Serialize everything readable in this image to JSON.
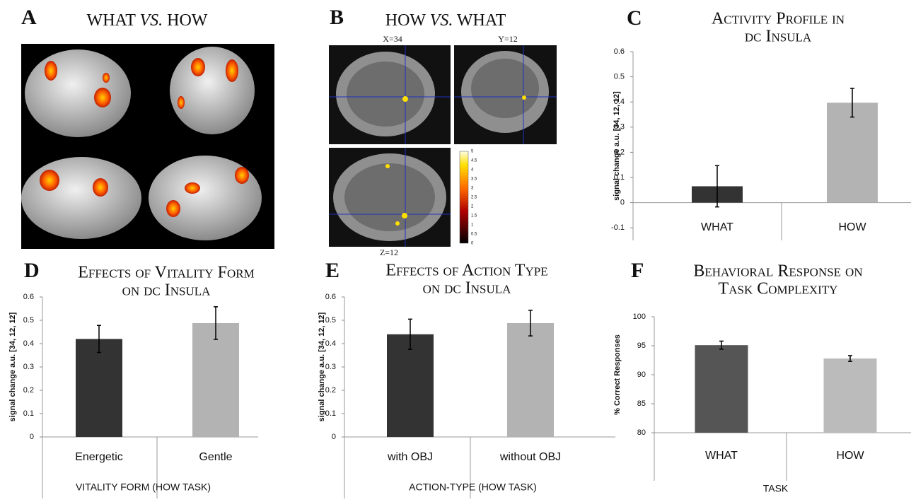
{
  "panel_a": {
    "letter": "A",
    "title": {
      "before": "WHAT",
      "italic": "VS.",
      "after": "HOW"
    }
  },
  "panel_b": {
    "letter": "B",
    "title": {
      "before": "HOW",
      "italic": "VS.",
      "after": "WHAT"
    },
    "slice_labels": [
      "X=34",
      "Y=12",
      "Z=12"
    ],
    "colorbar_ticks": [
      0,
      0.5,
      1,
      1.5,
      2,
      2.5,
      3,
      3.5,
      4,
      4.5,
      5
    ]
  },
  "chart_data": [
    {
      "type": "bar",
      "letter": "C",
      "title": [
        "Activity Profile in",
        "dc Insula"
      ],
      "ylabel": "signal change a.u. [34, 12, 12]",
      "categories": [
        "WHAT",
        "HOW"
      ],
      "values": [
        0.065,
        0.397
      ],
      "errors": [
        0.082,
        0.057
      ],
      "colors": [
        "#333333",
        "#b3b3b3"
      ],
      "ylim": [
        -0.15,
        0.6
      ],
      "yticks": [
        -0.1,
        0,
        0.1,
        0.2,
        0.3,
        0.4,
        0.5,
        0.6
      ]
    },
    {
      "type": "bar",
      "letter": "D",
      "title": [
        "Effects of Vitality Form",
        "on dc Insula"
      ],
      "ylabel": "signal change a.u. [34, 12, 12]",
      "xlabel": "VITALITY FORM (HOW TASK)",
      "categories": [
        "Energetic",
        "Gentle"
      ],
      "values": [
        0.42,
        0.488
      ],
      "errors": [
        0.058,
        0.07
      ],
      "colors": [
        "#333333",
        "#b3b3b3"
      ],
      "ylim": [
        0,
        0.6
      ],
      "yticks": [
        0,
        0.1,
        0.2,
        0.3,
        0.4,
        0.5,
        0.6
      ]
    },
    {
      "type": "bar",
      "letter": "E",
      "title": [
        "Effects of Action Type",
        "on dc Insula"
      ],
      "ylabel": "signal change a.u. [34, 12, 12]",
      "xlabel": "ACTION-TYPE  (HOW TASK)",
      "categories": [
        "with OBJ",
        "without OBJ"
      ],
      "values": [
        0.44,
        0.488
      ],
      "errors": [
        0.065,
        0.055
      ],
      "colors": [
        "#333333",
        "#b3b3b3"
      ],
      "ylim": [
        0,
        0.6
      ],
      "yticks": [
        0,
        0.1,
        0.2,
        0.3,
        0.4,
        0.5,
        0.6
      ]
    },
    {
      "type": "bar",
      "letter": "F",
      "title": [
        "Behavioral Response on",
        "Task Complexity"
      ],
      "ylabel": "% Correct Responses",
      "xlabel": "TASK",
      "categories": [
        "WHAT",
        "HOW"
      ],
      "values": [
        95.1,
        92.8
      ],
      "errors": [
        0.7,
        0.5
      ],
      "colors": [
        "#555555",
        "#bbbbbb"
      ],
      "ylim": [
        80,
        100
      ],
      "yticks": [
        80,
        85,
        90,
        95,
        100
      ]
    }
  ]
}
